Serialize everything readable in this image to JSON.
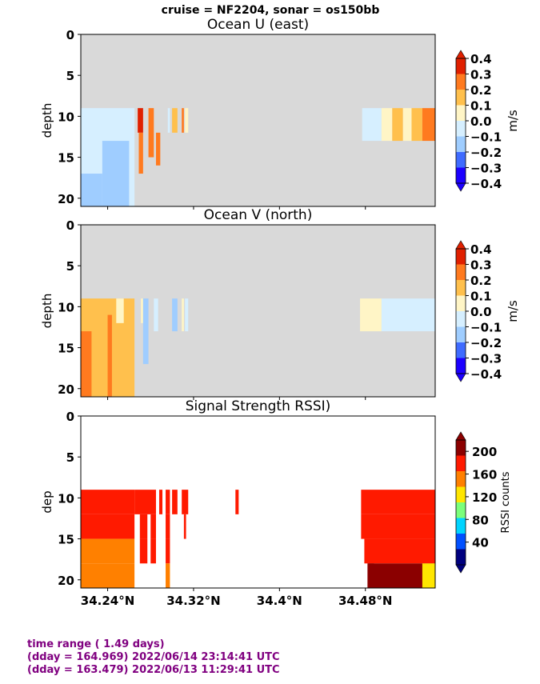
{
  "suptitle": "cruise = NF2204,  sonar = os150bb",
  "footer": {
    "line1": "time range ( 1.49 days)",
    "line2": "(dday = 164.969) 2022/06/14 23:14:41 UTC",
    "line3": "(dday = 163.479) 2022/06/13 11:29:41 UTC"
  },
  "colors": {
    "nodata": "#d9d9d9",
    "u_palette": [
      "#1c00ff",
      "#3f6bff",
      "#9fcdff",
      "#d6efff",
      "#fff5c6",
      "#ffc04d",
      "#ff7a1f",
      "#e02000"
    ],
    "rssi_palette": [
      "#00007f",
      "#0050ff",
      "#00d4ff",
      "#7bff7b",
      "#ffe600",
      "#ff8000",
      "#ff1a00",
      "#8b0000"
    ]
  },
  "chart_data": [
    {
      "type": "heatmap",
      "title": "Ocean U (east)",
      "ylabel": "depth",
      "ylim": [
        21,
        0
      ],
      "yticks": [
        "0",
        "5",
        "10",
        "15",
        "20"
      ],
      "xlim": [
        34.215,
        34.545
      ],
      "colorbar": {
        "label": "m/s",
        "ticks": [
          "0.4",
          "0.3",
          "0.2",
          "0.1",
          "0.0",
          "−0.1",
          "−0.2",
          "−0.3",
          "−0.4"
        ],
        "range": [
          -0.4,
          0.4
        ]
      },
      "no_data_above_depth": 9,
      "bins": [
        {
          "x": [
            34.215,
            34.265
          ],
          "depth": [
            9,
            21
          ],
          "value": -0.05
        },
        {
          "x": [
            34.215,
            34.235
          ],
          "depth": [
            17,
            21
          ],
          "value": -0.15
        },
        {
          "x": [
            34.235,
            34.26
          ],
          "depth": [
            13,
            21
          ],
          "value": -0.15
        },
        {
          "x": [
            34.268,
            34.273
          ],
          "depth": [
            9,
            12
          ],
          "value": 0.35
        },
        {
          "x": [
            34.269,
            34.273
          ],
          "depth": [
            12,
            17
          ],
          "value": 0.25
        },
        {
          "x": [
            34.278,
            34.283
          ],
          "depth": [
            9,
            15
          ],
          "value": 0.25
        },
        {
          "x": [
            34.285,
            34.289
          ],
          "depth": [
            12,
            16
          ],
          "value": 0.2
        },
        {
          "x": [
            34.296,
            34.298
          ],
          "depth": [
            9,
            12
          ],
          "value": -0.05
        },
        {
          "x": [
            34.3,
            34.305
          ],
          "depth": [
            9,
            12
          ],
          "value": 0.15
        },
        {
          "x": [
            34.309,
            34.311
          ],
          "depth": [
            9,
            12
          ],
          "value": 0.2
        },
        {
          "x": [
            34.312,
            34.315
          ],
          "depth": [
            9,
            12
          ],
          "value": 0.05
        },
        {
          "x": [
            34.477,
            34.495
          ],
          "depth": [
            9,
            13
          ],
          "value": -0.05
        },
        {
          "x": [
            34.495,
            34.505
          ],
          "depth": [
            9,
            13
          ],
          "value": 0.05
        },
        {
          "x": [
            34.505,
            34.515
          ],
          "depth": [
            9,
            13
          ],
          "value": 0.15
        },
        {
          "x": [
            34.515,
            34.523
          ],
          "depth": [
            9,
            13
          ],
          "value": 0.05
        },
        {
          "x": [
            34.523,
            34.533
          ],
          "depth": [
            9,
            13
          ],
          "value": 0.15
        },
        {
          "x": [
            34.533,
            34.545
          ],
          "depth": [
            9,
            13
          ],
          "value": 0.2
        }
      ]
    },
    {
      "type": "heatmap",
      "title": "Ocean V (north)",
      "ylabel": "depth",
      "ylim": [
        21,
        0
      ],
      "yticks": [
        "0",
        "5",
        "10",
        "15",
        "20"
      ],
      "xlim": [
        34.215,
        34.545
      ],
      "colorbar": {
        "label": "m/s",
        "ticks": [
          "0.4",
          "0.3",
          "0.2",
          "0.1",
          "0.0",
          "−0.1",
          "−0.2",
          "−0.3",
          "−0.4"
        ],
        "range": [
          -0.4,
          0.4
        ]
      },
      "no_data_above_depth": 9,
      "bins": [
        {
          "x": [
            34.215,
            34.265
          ],
          "depth": [
            9,
            21
          ],
          "value": 0.15
        },
        {
          "x": [
            34.215,
            34.225
          ],
          "depth": [
            13,
            21
          ],
          "value": 0.25
        },
        {
          "x": [
            34.24,
            34.244
          ],
          "depth": [
            11,
            21
          ],
          "value": 0.25
        },
        {
          "x": [
            34.248,
            34.255
          ],
          "depth": [
            9,
            12
          ],
          "value": 0.05
        },
        {
          "x": [
            34.271,
            34.273
          ],
          "depth": [
            9,
            12
          ],
          "value": 0.05
        },
        {
          "x": [
            34.273,
            34.278
          ],
          "depth": [
            9,
            17
          ],
          "value": -0.15
        },
        {
          "x": [
            34.283,
            34.287
          ],
          "depth": [
            9,
            13
          ],
          "value": -0.05
        },
        {
          "x": [
            34.3,
            34.305
          ],
          "depth": [
            9,
            13
          ],
          "value": -0.15
        },
        {
          "x": [
            34.309,
            34.311
          ],
          "depth": [
            9,
            13
          ],
          "value": 0.05
        },
        {
          "x": [
            34.312,
            34.315
          ],
          "depth": [
            9,
            13
          ],
          "value": -0.05
        },
        {
          "x": [
            34.475,
            34.495
          ],
          "depth": [
            9,
            13
          ],
          "value": 0.05
        },
        {
          "x": [
            34.495,
            34.545
          ],
          "depth": [
            9,
            13
          ],
          "value": -0.05
        }
      ]
    },
    {
      "type": "heatmap",
      "title": "Signal Strength RSSI)",
      "ylabel": "dep",
      "xlabel": "",
      "ylim": [
        21,
        0
      ],
      "yticks": [
        "0",
        "5",
        "10",
        "15",
        "20"
      ],
      "xlim": [
        34.215,
        34.545
      ],
      "xticks": [
        {
          "value": 34.24,
          "label": "34.24°N"
        },
        {
          "value": 34.32,
          "label": "34.32°N"
        },
        {
          "value": 34.4,
          "label": "34.4°N"
        },
        {
          "value": 34.48,
          "label": "34.48°N"
        }
      ],
      "colorbar": {
        "label": "RSSI counts",
        "ticks": [
          "200",
          "160",
          "120",
          "80",
          "40"
        ],
        "range": [
          0,
          220
        ]
      },
      "bins": [
        {
          "x": [
            34.215,
            34.265
          ],
          "depth": [
            9,
            12
          ],
          "value": 185
        },
        {
          "x": [
            34.215,
            34.265
          ],
          "depth": [
            12,
            15
          ],
          "value": 170
        },
        {
          "x": [
            34.215,
            34.265
          ],
          "depth": [
            15,
            18
          ],
          "value": 158
        },
        {
          "x": [
            34.215,
            34.265
          ],
          "depth": [
            18,
            21
          ],
          "value": 138
        },
        {
          "x": [
            34.265,
            34.285
          ],
          "depth": [
            9,
            12
          ],
          "value": 185
        },
        {
          "x": [
            34.27,
            34.277
          ],
          "depth": [
            12,
            15
          ],
          "value": 172
        },
        {
          "x": [
            34.27,
            34.277
          ],
          "depth": [
            15,
            18
          ],
          "value": 165
        },
        {
          "x": [
            34.28,
            34.285
          ],
          "depth": [
            12,
            15
          ],
          "value": 172
        },
        {
          "x": [
            34.28,
            34.285
          ],
          "depth": [
            15,
            18
          ],
          "value": 165
        },
        {
          "x": [
            34.288,
            34.291
          ],
          "depth": [
            9,
            12
          ],
          "value": 180
        },
        {
          "x": [
            34.294,
            34.298
          ],
          "depth": [
            9,
            12
          ],
          "value": 185
        },
        {
          "x": [
            34.294,
            34.298
          ],
          "depth": [
            12,
            15
          ],
          "value": 172
        },
        {
          "x": [
            34.294,
            34.298
          ],
          "depth": [
            15,
            18
          ],
          "value": 165
        },
        {
          "x": [
            34.294,
            34.298
          ],
          "depth": [
            18,
            21
          ],
          "value": 160
        },
        {
          "x": [
            34.3,
            34.305
          ],
          "depth": [
            9,
            12
          ],
          "value": 185
        },
        {
          "x": [
            34.309,
            34.315
          ],
          "depth": [
            9,
            12
          ],
          "value": 182
        },
        {
          "x": [
            34.311,
            34.313
          ],
          "depth": [
            12,
            15
          ],
          "value": 172
        },
        {
          "x": [
            34.359,
            34.362
          ],
          "depth": [
            9,
            12
          ],
          "value": 180
        },
        {
          "x": [
            34.476,
            34.545
          ],
          "depth": [
            9,
            12
          ],
          "value": 180
        },
        {
          "x": [
            34.476,
            34.545
          ],
          "depth": [
            12,
            15
          ],
          "value": 172
        },
        {
          "x": [
            34.479,
            34.545
          ],
          "depth": [
            15,
            18
          ],
          "value": 185
        },
        {
          "x": [
            34.482,
            34.545
          ],
          "depth": [
            18,
            21
          ],
          "value": 195
        },
        {
          "x": [
            34.482,
            34.488
          ],
          "depth": [
            18,
            21
          ],
          "value": 215
        },
        {
          "x": [
            34.533,
            34.545
          ],
          "depth": [
            18,
            21
          ],
          "value": 130
        }
      ]
    }
  ]
}
